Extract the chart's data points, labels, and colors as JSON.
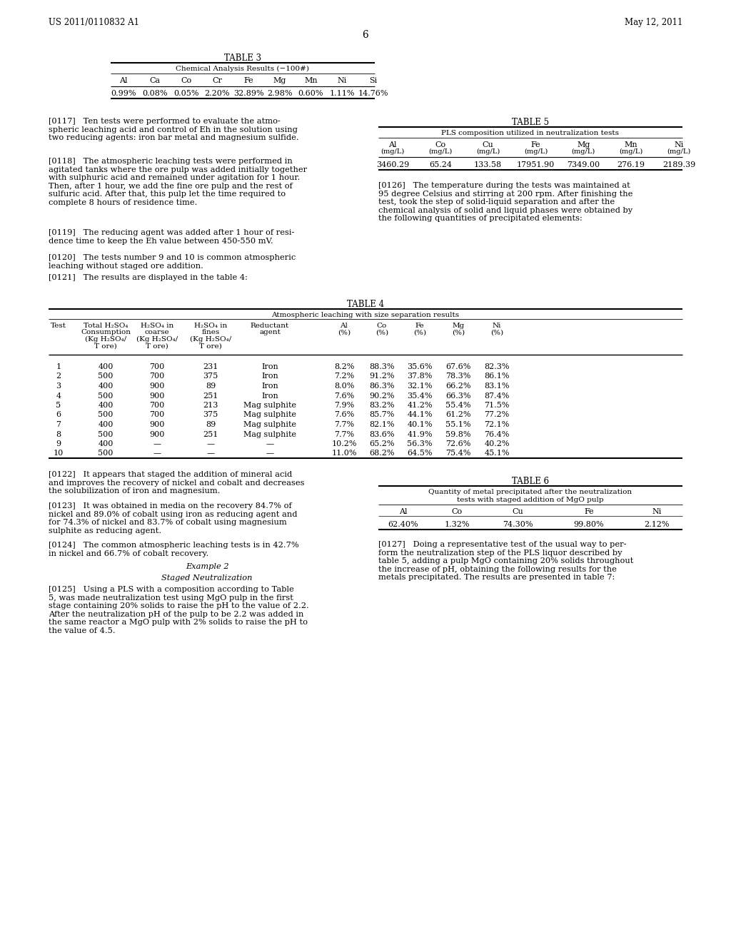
{
  "header_left": "US 2011/0110832 A1",
  "header_right": "May 12, 2011",
  "page_number": "6",
  "bg": "#ffffff",
  "table3_title": "TABLE 3",
  "table3_subtitle": "Chemical Analysis Results (−100#)",
  "table3_headers": [
    "Al",
    "Ca",
    "Co",
    "Cr",
    "Fe",
    "Mg",
    "Mn",
    "Ni",
    "Si"
  ],
  "table3_data": [
    "0.99%",
    "0.08%",
    "0.05%",
    "2.20%",
    "32.89%",
    "2.98%",
    "0.60%",
    "1.11%",
    "14.76%"
  ],
  "table5_title": "TABLE 5",
  "table5_subtitle": "PLS composition utilized in neutralization tests",
  "table5_headers": [
    "Al",
    "Co",
    "Cu",
    "Fe",
    "Mg",
    "Mn",
    "Ni"
  ],
  "table5_units": [
    "(mg/L)",
    "(mg/L)",
    "(mg/L)",
    "(mg/L)",
    "(mg/L)",
    "(mg/L)",
    "(mg/L)"
  ],
  "table5_data": [
    "3460.29",
    "65.24",
    "133.58",
    "17951.90",
    "7349.00",
    "276.19",
    "2189.39"
  ],
  "table4_title": "TABLE 4",
  "table4_subtitle": "Atmospheric leaching with size separation results",
  "table4_data": [
    [
      "1",
      "400",
      "700",
      "231",
      "Iron",
      "8.2%",
      "88.3%",
      "35.6%",
      "67.6%",
      "82.3%"
    ],
    [
      "2",
      "500",
      "700",
      "375",
      "Iron",
      "7.2%",
      "91.2%",
      "37.8%",
      "78.3%",
      "86.1%"
    ],
    [
      "3",
      "400",
      "900",
      "89",
      "Iron",
      "8.0%",
      "86.3%",
      "32.1%",
      "66.2%",
      "83.1%"
    ],
    [
      "4",
      "500",
      "900",
      "251",
      "Iron",
      "7.6%",
      "90.2%",
      "35.4%",
      "66.3%",
      "87.4%"
    ],
    [
      "5",
      "400",
      "700",
      "213",
      "Mag sulphite",
      "7.9%",
      "83.2%",
      "41.2%",
      "55.4%",
      "71.5%"
    ],
    [
      "6",
      "500",
      "700",
      "375",
      "Mag sulphite",
      "7.6%",
      "85.7%",
      "44.1%",
      "61.2%",
      "77.2%"
    ],
    [
      "7",
      "400",
      "900",
      "89",
      "Mag sulphite",
      "7.7%",
      "82.1%",
      "40.1%",
      "55.1%",
      "72.1%"
    ],
    [
      "8",
      "500",
      "900",
      "251",
      "Mag sulphite",
      "7.7%",
      "83.6%",
      "41.9%",
      "59.8%",
      "76.4%"
    ],
    [
      "9",
      "400",
      "—",
      "—",
      "—",
      "10.2%",
      "65.2%",
      "56.3%",
      "72.6%",
      "40.2%"
    ],
    [
      "10",
      "500",
      "—",
      "—",
      "—",
      "11.0%",
      "68.2%",
      "64.5%",
      "75.4%",
      "45.1%"
    ]
  ],
  "table6_title": "TABLE 6",
  "table6_sub1": "Quantity of metal precipitated after the neutralization",
  "table6_sub2": "tests with staged addition of MgO pulp",
  "table6_headers": [
    "Al",
    "Co",
    "Cu",
    "Fe",
    "Ni"
  ],
  "table6_data": [
    "62.40%",
    "1.32%",
    "74.30%",
    "99.80%",
    "2.12%"
  ],
  "p117": "[0117]   Ten tests were performed to evaluate the atmo-\nspheric leaching acid and control of Eh in the solution using\ntwo reducing agents: iron bar metal and magnesium sulfide.",
  "p118": "[0118]   The atmospheric leaching tests were performed in\nagitated tanks where the ore pulp was added initially together\nwith sulphuric acid and remained under agitation for 1 hour.\nThen, after 1 hour, we add the fine ore pulp and the rest of\nsulfuric acid. After that, this pulp let the time required to\ncomplete 8 hours of residence time.",
  "p119": "[0119]   The reducing agent was added after 1 hour of resi-\ndence time to keep the Eh value between 450-550 mV.",
  "p120": "[0120]   The tests number 9 and 10 is common atmospheric\nleaching without staged ore addition.",
  "p121": "[0121]   The results are displayed in the table 4:",
  "p122": "[0122]   It appears that staged the addition of mineral acid\nand improves the recovery of nickel and cobalt and decreases\nthe solubilization of iron and magnesium.",
  "p123": "[0123]   It was obtained in media on the recovery 84.7% of\nnickel and 89.0% of cobalt using iron as reducing agent and\nfor 74.3% of nickel and 83.7% of cobalt using magnesium\nsulphite as reducing agent.",
  "p124": "[0124]   The common atmospheric leaching tests is in 42.7%\nin nickel and 66.7% of cobalt recovery.",
  "ex2": "Example 2",
  "ex2sub": "Staged Neutralization",
  "p125": "[0125]   Using a PLS with a composition according to Table\n5, was made neutralization test using MgO pulp in the first\nstage containing 20% solids to raise the pH to the value of 2.2.\nAfter the neutralization pH of the pulp to be 2.2 was added in\nthe same reactor a MgO pulp with 2% solids to raise the pH to\nthe value of 4.5.",
  "p126": "[0126]   The temperature during the tests was maintained at\n95 degree Celsius and stirring at 200 rpm. After finishing the\ntest, took the step of solid-liquid separation and after the\nchemical analysis of solid and liquid phases were obtained by\nthe following quantities of precipitated elements:",
  "p127": "[0127]   Doing a representative test of the usual way to per-\nform the neutralization step of the PLS liquor described by\ntable 5, adding a pulp MgO containing 20% solids throughout\nthe increase of pH, obtaining the following results for the\nmetals precipitated. The results are presented in table 7:"
}
